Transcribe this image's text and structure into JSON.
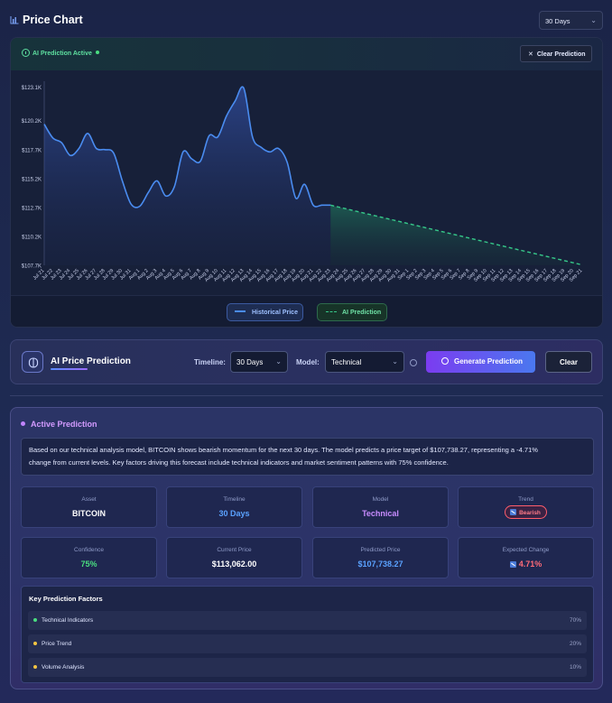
{
  "header": {
    "title": "Price Chart",
    "range_select": "30 Days"
  },
  "chart_panel": {
    "ai_status": "AI Prediction Active",
    "clear_prediction_label": "Clear Prediction",
    "legend": {
      "historical": "Historical Price",
      "prediction": "AI Prediction"
    }
  },
  "chart_data": {
    "type": "line",
    "ylim": [
      107700,
      123300
    ],
    "yticks": [
      "$107.7K",
      "$110.2K",
      "$112.7K",
      "$115.2K",
      "$117.7K",
      "$120.2K",
      "$123.1K"
    ],
    "ytick_values": [
      107700,
      110200,
      112700,
      115200,
      117700,
      120200,
      123100
    ],
    "x_labels": [
      "Jul 21",
      "Jul 22",
      "Jul 23",
      "Jul 24",
      "Jul 25",
      "Jul 26",
      "Jul 27",
      "Jul 28",
      "Jul 29",
      "Jul 30",
      "Jul 31",
      "Aug 1",
      "Aug 2",
      "Aug 3",
      "Aug 4",
      "Aug 5",
      "Aug 6",
      "Aug 7",
      "Aug 8",
      "Aug 9",
      "Aug 10",
      "Aug 11",
      "Aug 12",
      "Aug 13",
      "Aug 14",
      "Aug 15",
      "Aug 16",
      "Aug 17",
      "Aug 18",
      "Aug 19",
      "Aug 20",
      "Aug 21",
      "Aug 22",
      "Aug 23",
      "Aug 24",
      "Aug 25",
      "Aug 26",
      "Aug 27",
      "Aug 28",
      "Aug 29",
      "Aug 30",
      "Aug 31",
      "Sep 1",
      "Sep 2",
      "Sep 3",
      "Sep 4",
      "Sep 5",
      "Sep 6",
      "Sep 7",
      "Sep 8",
      "Sep 9",
      "Sep 10",
      "Sep 11",
      "Sep 12",
      "Sep 13",
      "Sep 14",
      "Sep 15",
      "Sep 16",
      "Sep 17",
      "Sep 18",
      "Sep 19",
      "Sep 20",
      "Sep 21"
    ],
    "series": [
      {
        "name": "Historical Price",
        "style": "solid",
        "color": "#4a8cf0",
        "values": [
          119900,
          118700,
          118300,
          117200,
          117800,
          119100,
          117800,
          117700,
          117400,
          115000,
          113000,
          112800,
          114000,
          115000,
          113700,
          114500,
          117500,
          116900,
          116700,
          118900,
          118800,
          120600,
          121900,
          123000,
          118800,
          117900,
          117500,
          117800,
          116600,
          113500,
          114700,
          112900,
          112900,
          112900
        ]
      },
      {
        "name": "AI Prediction",
        "style": "dashed",
        "color": "#36c98a",
        "start_index": 33,
        "values": [
          112900,
          107738.27
        ]
      }
    ]
  },
  "ai_bar": {
    "title": "AI Price Prediction",
    "timeline_label": "Timeline:",
    "timeline_value": "30 Days",
    "model_label": "Model:",
    "model_value": "Technical",
    "generate_label": "Generate Prediction",
    "clear_label": "Clear"
  },
  "active_prediction": {
    "title": "Active Prediction",
    "summary_line1": "Based on our technical analysis model, BITCOIN shows bearish momentum for the next 30 days. The model predicts a price target of $107,738.27, representing a -4.71%",
    "summary_line2": "change from current levels. Key factors driving this forecast include technical indicators and market sentiment patterns with 75% confidence.",
    "cards": {
      "asset": {
        "label": "Asset",
        "value": "BITCOIN"
      },
      "timeline": {
        "label": "Timeline",
        "value": "30 Days"
      },
      "model": {
        "label": "Model",
        "value": "Technical"
      },
      "trend": {
        "label": "Trend",
        "value": "Bearish"
      },
      "confidence": {
        "label": "Confidence",
        "value": "75%"
      },
      "current_price": {
        "label": "Current Price",
        "value": "$113,062.00"
      },
      "predicted_price": {
        "label": "Predicted Price",
        "value": "$107,738.27"
      },
      "expected_change": {
        "label": "Expected Change",
        "value": "4.71%"
      }
    },
    "factors_title": "Key Prediction Factors",
    "factors": [
      {
        "name": "Technical Indicators",
        "value": "70%",
        "color": "#4ade80"
      },
      {
        "name": "Price Trend",
        "value": "20%",
        "color": "#f5c542"
      },
      {
        "name": "Volume Analysis",
        "value": "10%",
        "color": "#f5c542"
      }
    ]
  }
}
